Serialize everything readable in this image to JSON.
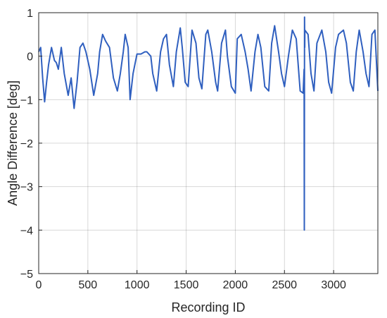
{
  "chart_data": {
    "type": "line",
    "title": "",
    "xlabel": "Recording ID",
    "ylabel": "Angle Difference [deg]",
    "xlim": [
      0,
      3450
    ],
    "ylim": [
      -5,
      1
    ],
    "xticks": [
      0,
      500,
      1000,
      1500,
      2000,
      2500,
      3000
    ],
    "xtick_labels": [
      "0",
      "500",
      "1000",
      "1500",
      "2000",
      "2500",
      "3000"
    ],
    "yticks": [
      -5,
      -4,
      -3,
      -2,
      -1,
      0,
      1
    ],
    "ytick_labels": [
      "−5",
      "−4",
      "−3",
      "−2",
      "−1",
      "0",
      "1"
    ],
    "grid": true,
    "series": [
      {
        "color": "#2F5FBF",
        "x": [
          0,
          20,
          40,
          60,
          80,
          100,
          130,
          160,
          180,
          200,
          230,
          260,
          300,
          330,
          360,
          390,
          420,
          450,
          480,
          520,
          560,
          600,
          620,
          650,
          680,
          720,
          760,
          800,
          830,
          860,
          880,
          910,
          930,
          960,
          1000,
          1040,
          1080,
          1100,
          1140,
          1160,
          1200,
          1240,
          1270,
          1300,
          1330,
          1370,
          1400,
          1440,
          1460,
          1490,
          1520,
          1560,
          1600,
          1630,
          1660,
          1700,
          1720,
          1760,
          1800,
          1820,
          1860,
          1900,
          1920,
          1960,
          2000,
          2020,
          2060,
          2100,
          2130,
          2160,
          2200,
          2230,
          2260,
          2300,
          2340,
          2370,
          2400,
          2440,
          2470,
          2500,
          2540,
          2580,
          2620,
          2660,
          2690,
          2700,
          2702,
          2704,
          2706,
          2708,
          2740,
          2770,
          2800,
          2830,
          2880,
          2920,
          2950,
          2980,
          3020,
          3050,
          3100,
          3130,
          3170,
          3200,
          3230,
          3260,
          3300,
          3330,
          3360,
          3390,
          3420,
          3450
        ],
        "y": [
          0.1,
          0.2,
          -0.5,
          -1.05,
          -0.6,
          -0.2,
          0.2,
          -0.1,
          -0.15,
          -0.3,
          0.2,
          -0.4,
          -0.9,
          -0.5,
          -1.2,
          -0.6,
          0.2,
          0.3,
          0.1,
          -0.3,
          -0.9,
          -0.4,
          0.1,
          0.5,
          0.35,
          0.2,
          -0.5,
          -0.8,
          -0.4,
          0.1,
          0.5,
          0.2,
          -1.0,
          -0.4,
          0.05,
          0.05,
          0.1,
          0.1,
          0.0,
          -0.4,
          -0.8,
          0.1,
          0.4,
          0.5,
          -0.2,
          -0.7,
          0.1,
          0.65,
          0.2,
          -0.6,
          -0.7,
          0.6,
          0.3,
          -0.5,
          -0.75,
          0.5,
          0.6,
          0.1,
          -0.6,
          -0.8,
          0.3,
          0.6,
          0.0,
          -0.7,
          -0.85,
          0.4,
          0.5,
          0.1,
          -0.3,
          -0.8,
          0.1,
          0.5,
          0.2,
          -0.7,
          -0.8,
          0.3,
          0.7,
          0.1,
          -0.4,
          -0.7,
          0.0,
          0.6,
          0.4,
          -0.8,
          -0.85,
          -0.3,
          -4.0,
          0.9,
          0.2,
          0.6,
          0.5,
          -0.4,
          -0.8,
          0.3,
          0.6,
          0.1,
          -0.6,
          -0.85,
          0.2,
          0.5,
          0.6,
          0.3,
          -0.6,
          -0.8,
          0.1,
          0.6,
          0.1,
          -0.4,
          -0.7,
          0.5,
          0.6,
          -0.8
        ]
      }
    ]
  }
}
